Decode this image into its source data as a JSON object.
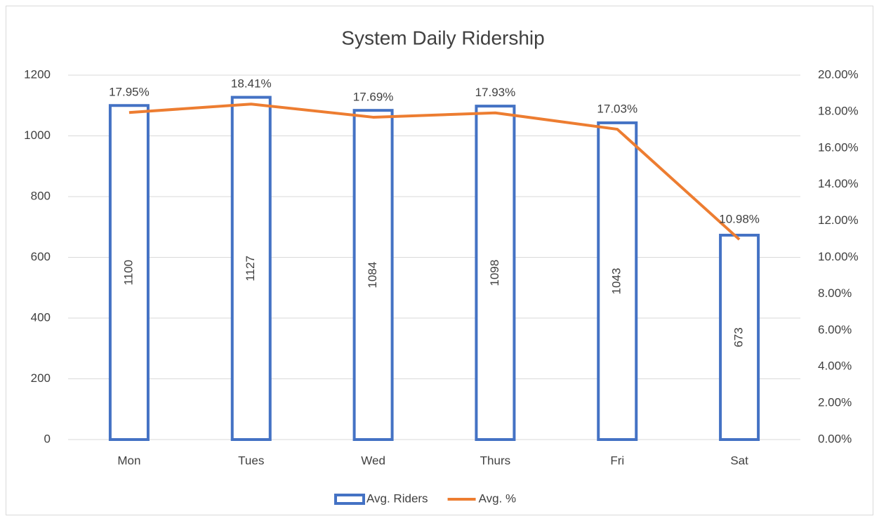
{
  "chart_data": {
    "type": "bar_line",
    "title": "System Daily Ridership",
    "categories": [
      "Mon",
      "Tues",
      "Wed",
      "Thurs",
      "Fri",
      "Sat"
    ],
    "series": [
      {
        "name": "Avg. Riders",
        "type": "bar",
        "color": "#4472c4",
        "values": [
          1100,
          1127,
          1084,
          1098,
          1043,
          673
        ]
      },
      {
        "name": "Avg. %",
        "type": "line",
        "color": "#ed7d31",
        "axis": "y2",
        "values": [
          17.95,
          18.41,
          17.69,
          17.93,
          17.03,
          10.98
        ],
        "value_labels": [
          "17.95%",
          "18.41%",
          "17.69%",
          "17.93%",
          "17.03%",
          "10.98%"
        ]
      }
    ],
    "ylim": [
      0,
      1200
    ],
    "yticks": [
      0,
      200,
      400,
      600,
      800,
      1000,
      1200
    ],
    "y2lim": [
      0,
      20
    ],
    "y2ticks": [
      {
        "value": 0,
        "label": "0.00%"
      },
      {
        "value": 2,
        "label": "2.00%"
      },
      {
        "value": 4,
        "label": "4.00%"
      },
      {
        "value": 6,
        "label": "6.00%"
      },
      {
        "value": 8,
        "label": "8.00%"
      },
      {
        "value": 10,
        "label": "10.00%"
      },
      {
        "value": 12,
        "label": "12.00%"
      },
      {
        "value": 14,
        "label": "14.00%"
      },
      {
        "value": 16,
        "label": "16.00%"
      },
      {
        "value": 18,
        "label": "18.00%"
      },
      {
        "value": 20,
        "label": "20.00%"
      }
    ],
    "grid": true,
    "legend": "bottom"
  }
}
